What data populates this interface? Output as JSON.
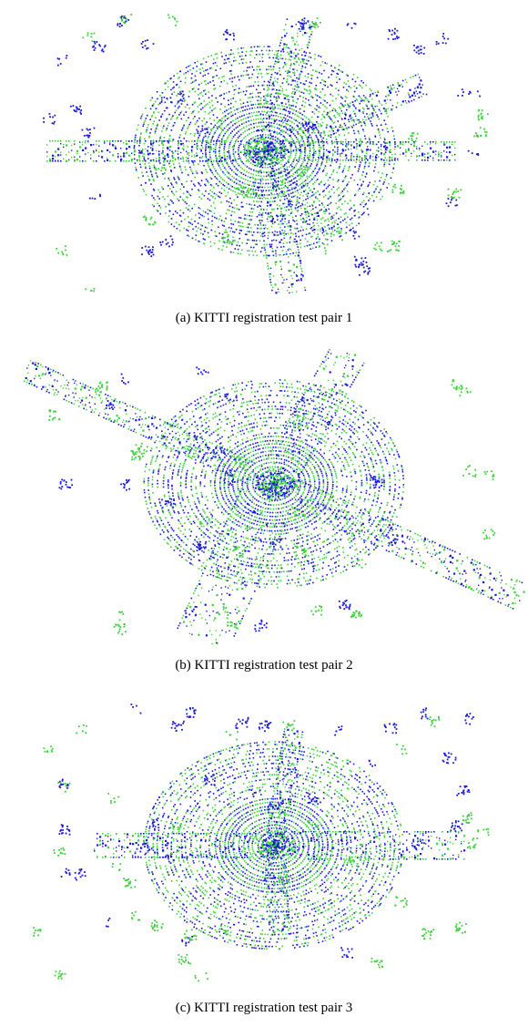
{
  "colors": {
    "source_cloud": "#1a1ad6",
    "target_cloud": "#3ed23e",
    "background": "#ffffff"
  },
  "panels": [
    {
      "caption": "(a) KITTI registration test pair 1",
      "layout": "star-intersection"
    },
    {
      "caption": "(b) KITTI registration test pair 2",
      "layout": "diagonal-cross"
    },
    {
      "caption": "(c) KITTI registration test pair 3",
      "layout": "t-junction"
    }
  ]
}
